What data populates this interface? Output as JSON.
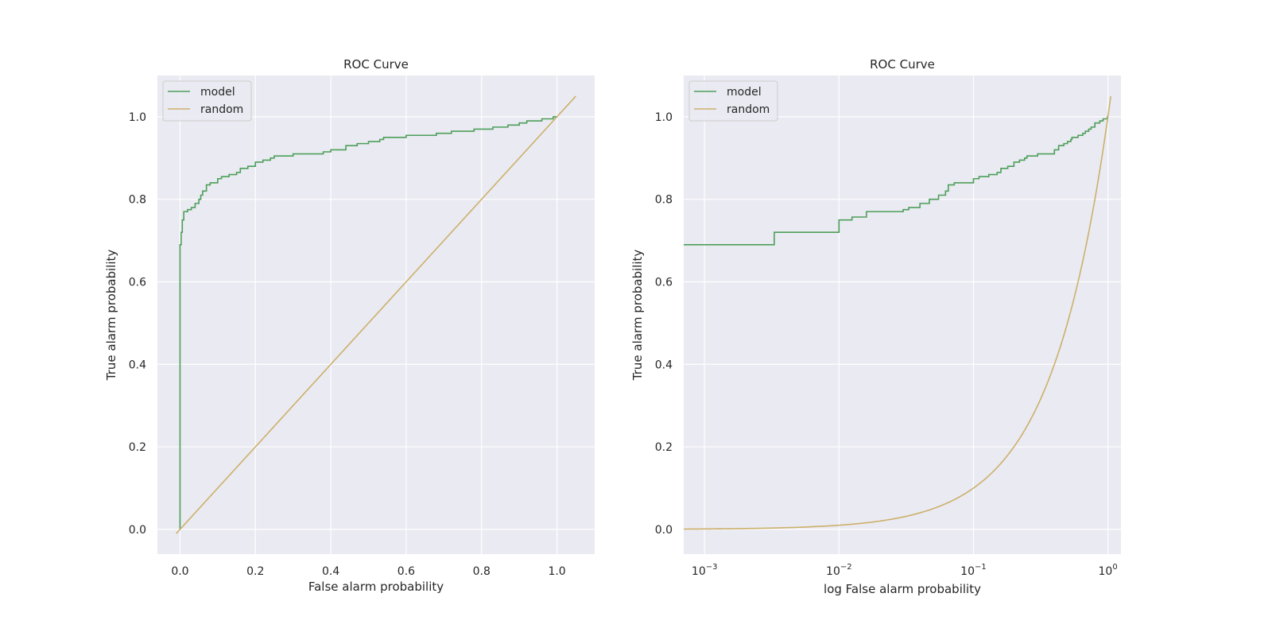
{
  "colors": {
    "plot_background": "#eaeaf2",
    "grid": "#ffffff",
    "model": "#4c9f5a",
    "random": "#ccb06a",
    "text": "#262626"
  },
  "chart_data": [
    {
      "type": "line",
      "title": "ROC Curve",
      "xlabel": "False alarm probability",
      "ylabel": "True alarm probability",
      "xscale": "linear",
      "xlim": [
        -0.06,
        1.1
      ],
      "ylim": [
        -0.06,
        1.1
      ],
      "xticks": [
        0.0,
        0.2,
        0.4,
        0.6,
        0.8,
        1.0
      ],
      "xtick_labels": [
        "0.0",
        "0.2",
        "0.4",
        "0.6",
        "0.8",
        "1.0"
      ],
      "yticks": [
        0.0,
        0.2,
        0.4,
        0.6,
        0.8,
        1.0
      ],
      "ytick_labels": [
        "0.0",
        "0.2",
        "0.4",
        "0.6",
        "0.8",
        "1.0"
      ],
      "grid": true,
      "legend": "top-left",
      "series": [
        {
          "name": "model",
          "color": "#4c9f5a",
          "step": true,
          "x": [
            0.0,
            0.0,
            0.003,
            0.006,
            0.01,
            0.015,
            0.02,
            0.03,
            0.04,
            0.05,
            0.055,
            0.06,
            0.07,
            0.08,
            0.1,
            0.11,
            0.13,
            0.15,
            0.16,
            0.18,
            0.2,
            0.22,
            0.24,
            0.25,
            0.28,
            0.3,
            0.36,
            0.38,
            0.4,
            0.43,
            0.44,
            0.47,
            0.5,
            0.53,
            0.54,
            0.56,
            0.6,
            0.65,
            0.68,
            0.72,
            0.75,
            0.78,
            0.8,
            0.83,
            0.87,
            0.9,
            0.92,
            0.96,
            0.99,
            1.0
          ],
          "y": [
            0.0,
            0.69,
            0.72,
            0.75,
            0.77,
            0.77,
            0.775,
            0.78,
            0.79,
            0.8,
            0.81,
            0.82,
            0.835,
            0.84,
            0.85,
            0.855,
            0.86,
            0.865,
            0.875,
            0.88,
            0.89,
            0.895,
            0.9,
            0.905,
            0.905,
            0.91,
            0.91,
            0.915,
            0.92,
            0.92,
            0.93,
            0.935,
            0.94,
            0.945,
            0.95,
            0.95,
            0.955,
            0.955,
            0.96,
            0.965,
            0.965,
            0.97,
            0.97,
            0.975,
            0.98,
            0.985,
            0.99,
            0.995,
            1.0,
            1.0
          ]
        },
        {
          "name": "random",
          "color": "#ccb06a",
          "step": false,
          "x": [
            -0.01,
            1.05
          ],
          "y": [
            -0.01,
            1.05
          ]
        }
      ]
    },
    {
      "type": "line",
      "title": "ROC Curve",
      "xlabel": "log False alarm probability",
      "ylabel": "True alarm probability",
      "xscale": "log",
      "xlim": [
        0.0007,
        1.25
      ],
      "ylim": [
        -0.06,
        1.1
      ],
      "xticks": [
        0.001,
        0.01,
        0.1,
        1.0
      ],
      "xtick_labels": [
        {
          "base": "10",
          "exp": "−3"
        },
        {
          "base": "10",
          "exp": "−2"
        },
        {
          "base": "10",
          "exp": "−1"
        },
        {
          "base": "10",
          "exp": "0"
        }
      ],
      "yticks": [
        0.0,
        0.2,
        0.4,
        0.6,
        0.8,
        1.0
      ],
      "ytick_labels": [
        "0.0",
        "0.2",
        "0.4",
        "0.6",
        "0.8",
        "1.0"
      ],
      "grid": true,
      "legend": "top-left",
      "series": [
        {
          "name": "model",
          "color": "#4c9f5a",
          "step": true,
          "x": [
            0.0007,
            0.0033,
            0.01,
            0.0125,
            0.016,
            0.03,
            0.033,
            0.04,
            0.047,
            0.055,
            0.062,
            0.065,
            0.072,
            0.081,
            0.1,
            0.11,
            0.13,
            0.15,
            0.16,
            0.18,
            0.2,
            0.22,
            0.24,
            0.25,
            0.3,
            0.36,
            0.4,
            0.43,
            0.47,
            0.5,
            0.53,
            0.54,
            0.56,
            0.6,
            0.65,
            0.68,
            0.72,
            0.75,
            0.8,
            0.87,
            0.92,
            0.99,
            1.0
          ],
          "y": [
            0.69,
            0.72,
            0.75,
            0.757,
            0.77,
            0.775,
            0.78,
            0.79,
            0.8,
            0.81,
            0.82,
            0.835,
            0.84,
            0.84,
            0.85,
            0.855,
            0.86,
            0.865,
            0.875,
            0.88,
            0.89,
            0.895,
            0.9,
            0.905,
            0.91,
            0.91,
            0.92,
            0.93,
            0.935,
            0.94,
            0.945,
            0.95,
            0.95,
            0.955,
            0.96,
            0.965,
            0.97,
            0.975,
            0.985,
            0.99,
            0.995,
            1.0,
            1.0
          ]
        },
        {
          "name": "random",
          "color": "#ccb06a",
          "step": false,
          "curve": "y = x",
          "x_range": [
            0.0007,
            1.05
          ]
        }
      ]
    }
  ]
}
